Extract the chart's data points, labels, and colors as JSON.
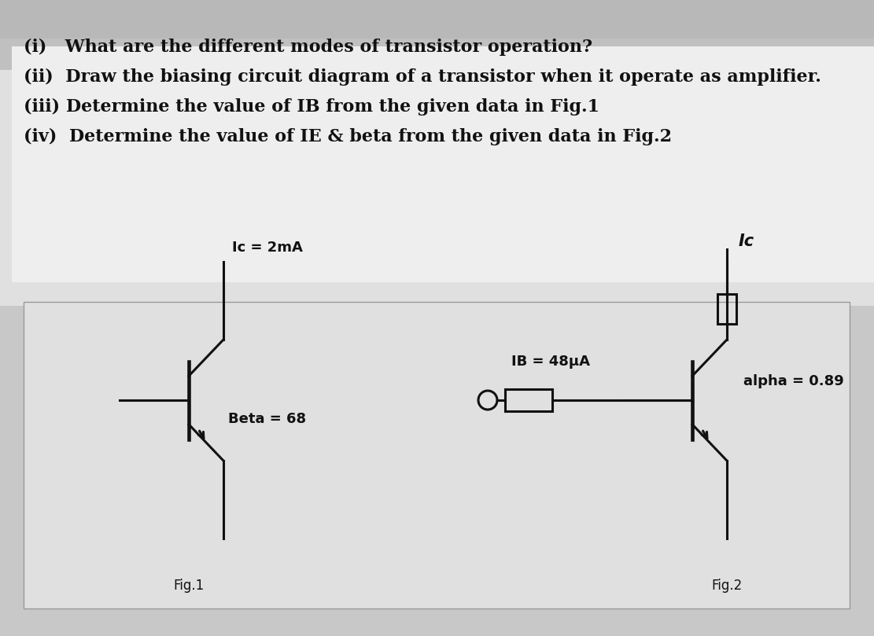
{
  "bg_top_stripe": "#c8c8c8",
  "bg_white_stripe": "#e8e8e8",
  "bg_gray_stripe": "#b8b8b8",
  "panel_bg": "#d8d8d8",
  "panel_inner_bg": "#e4e4e4",
  "line1": "(i)   What are the different modes of transistor operation?",
  "line2": "(ii)  Draw the biasing circuit diagram of a transistor when it operate as amplifier.",
  "line3": "(iii) Determine the value of IB from the given data in Fig.1",
  "line4": "(iv)  Determine the value of IE & beta from the given data in Fig.2",
  "fig1_ic_label": "Ic = 2mA",
  "fig1_beta_label": "Beta = 68",
  "fig1_label": "Fig.1",
  "fig2_ic_label": "Ic",
  "fig2_ib_label": "IB = 48μA",
  "fig2_alpha_label": "alpha = 0.89",
  "fig2_label": "Fig.2",
  "text_color": "#111111",
  "line_color": "#111111"
}
